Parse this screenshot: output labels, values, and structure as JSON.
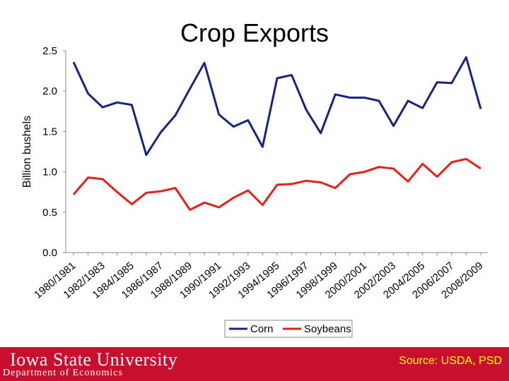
{
  "slide": {
    "title": "Crop Exports",
    "university_name": "Iowa State University",
    "department": "Department of Economics",
    "source": "Source: USDA, PSD"
  },
  "colors": {
    "footer_bg": "#c8102e",
    "corn": "#1a237e",
    "soybeans": "#e8201a",
    "source_text": "#ffff00"
  },
  "chart_data": {
    "type": "line",
    "title": "Crop Exports",
    "xlabel": "",
    "ylabel": "Billion bushels",
    "ylim": [
      0,
      2.5
    ],
    "yticks": [
      0.0,
      0.5,
      1.0,
      1.5,
      2.0,
      2.5
    ],
    "ytick_labels": [
      "0.0",
      "0.5",
      "1.0",
      "1.5",
      "2.0",
      "2.5"
    ],
    "x": [
      "1980/1981",
      "1981/1982",
      "1982/1983",
      "1983/1984",
      "1984/1985",
      "1985/1986",
      "1986/1987",
      "1987/1988",
      "1988/1989",
      "1989/1990",
      "1990/1991",
      "1991/1992",
      "1992/1993",
      "1993/1994",
      "1994/1995",
      "1995/1996",
      "1996/1997",
      "1997/1998",
      "1998/1999",
      "1999/2000",
      "2000/2001",
      "2001/2002",
      "2002/2003",
      "2003/2004",
      "2004/2005",
      "2005/2006",
      "2006/2007",
      "2007/2008",
      "2008/2009"
    ],
    "x_tick_labels": [
      "1980/1981",
      "1982/1983",
      "1984/1985",
      "1986/1987",
      "1988/1989",
      "1990/1991",
      "1992/1993",
      "1994/1995",
      "1996/1997",
      "1998/1999",
      "2000/2001",
      "2002/2003",
      "2004/2005",
      "2006/2007",
      "2008/2009"
    ],
    "series": [
      {
        "name": "Corn",
        "color": "#1a237e",
        "values": [
          2.36,
          1.97,
          1.8,
          1.86,
          1.83,
          1.21,
          1.49,
          1.7,
          2.03,
          2.35,
          1.71,
          1.56,
          1.64,
          1.31,
          2.16,
          2.2,
          1.77,
          1.48,
          1.96,
          1.92,
          1.92,
          1.88,
          1.57,
          1.88,
          1.79,
          2.11,
          2.1,
          2.42,
          1.78
        ]
      },
      {
        "name": "Soybeans",
        "color": "#e8201a",
        "values": [
          0.72,
          0.93,
          0.91,
          0.75,
          0.6,
          0.74,
          0.76,
          0.8,
          0.53,
          0.62,
          0.56,
          0.68,
          0.77,
          0.59,
          0.84,
          0.85,
          0.89,
          0.87,
          0.8,
          0.97,
          1.0,
          1.06,
          1.04,
          0.88,
          1.1,
          0.94,
          1.12,
          1.16,
          1.04
        ]
      }
    ],
    "legend_position": "bottom-center",
    "grid": false
  }
}
